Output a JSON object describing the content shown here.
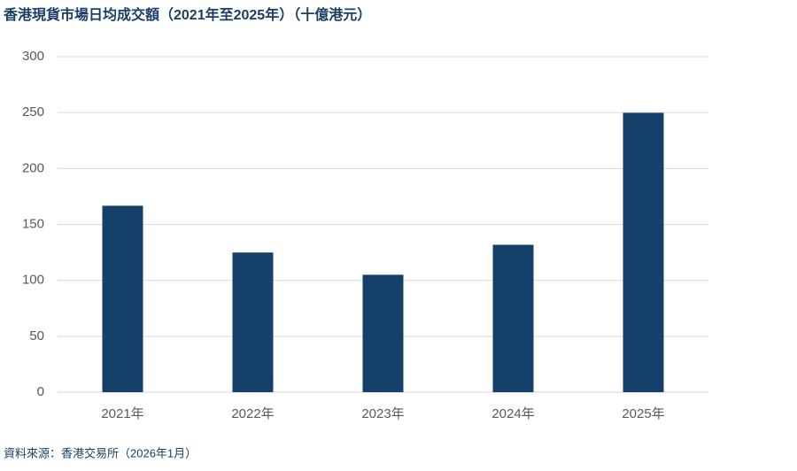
{
  "chart_data": {
    "type": "bar",
    "title": "香港現貨市場日均成交額（2021年至2025年）（十億港元）",
    "categories": [
      "2021年",
      "2022年",
      "2023年",
      "2024年",
      "2025年"
    ],
    "values": [
      166.7,
      124.9,
      105.0,
      131.8,
      249.8
    ],
    "color": "#15406a",
    "ylim": [
      0,
      300
    ],
    "yticks": [
      0,
      50,
      100,
      150,
      200,
      250,
      300
    ],
    "grid": true,
    "source": "資料來源：香港交易所（2026年1月）"
  }
}
